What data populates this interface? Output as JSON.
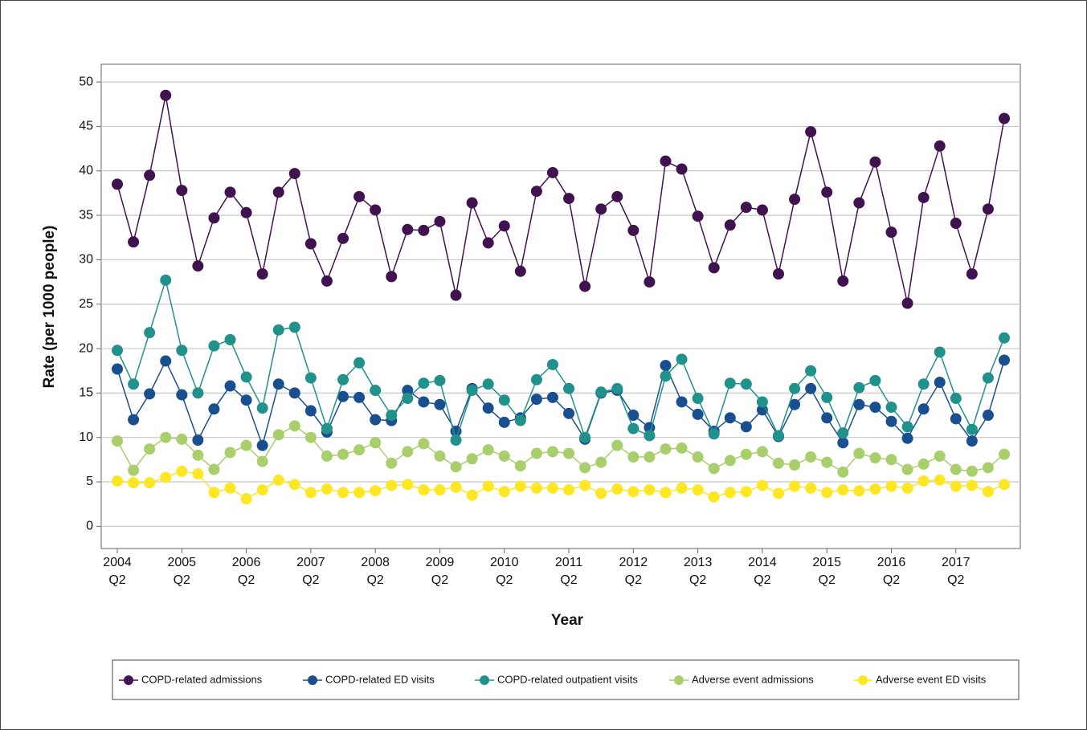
{
  "chart_data": {
    "type": "line",
    "y_label": "Rate (per 1000 people)",
    "x_label": "Year",
    "categories": [
      "2004 Q2",
      null,
      null,
      null,
      "2005 Q2",
      null,
      null,
      null,
      "2006 Q2",
      null,
      null,
      null,
      "2007 Q2",
      null,
      null,
      null,
      "2008 Q2",
      null,
      null,
      null,
      "2009 Q2",
      null,
      null,
      null,
      "2010 Q2",
      null,
      null,
      null,
      "2011 Q2",
      null,
      null,
      null,
      "2012 Q2",
      null,
      null,
      null,
      "2013 Q2",
      null,
      null,
      null,
      "2014 Q2",
      null,
      null,
      null,
      "2015 Q2",
      null,
      null,
      null,
      "2016 Q2",
      null,
      null,
      null,
      "2017 Q2",
      null,
      null,
      null
    ],
    "ylim": [
      -2.5,
      52
    ],
    "yticks": [
      0,
      5,
      10,
      15,
      20,
      25,
      30,
      35,
      40,
      45,
      50
    ],
    "grid": true,
    "legend": "bottom",
    "series": [
      {
        "name": "COPD-related admissions",
        "color": "#40124f",
        "values": [
          38.5,
          32,
          39.5,
          48.5,
          37.8,
          29.3,
          34.7,
          37.6,
          35.3,
          28.4,
          37.6,
          39.7,
          31.8,
          27.6,
          32.4,
          37.1,
          35.6,
          28.1,
          33.4,
          33.3,
          34.3,
          26,
          36.4,
          31.9,
          33.8,
          28.7,
          37.7,
          39.8,
          36.9,
          27,
          35.7,
          37.1,
          33.3,
          27.5,
          41.1,
          40.2,
          34.9,
          29.1,
          33.9,
          35.9,
          35.6,
          28.4,
          36.8,
          44.4,
          37.6,
          27.6,
          36.4,
          41,
          33.1,
          25.1,
          37,
          42.8,
          34.1,
          28.4,
          35.7,
          45.9
        ]
      },
      {
        "name": "COPD-related ED visits",
        "color": "#1a4f8f",
        "values": [
          17.7,
          12,
          14.9,
          18.6,
          14.8,
          9.7,
          13.2,
          15.8,
          14.2,
          9.1,
          16,
          15,
          13,
          10.6,
          14.6,
          14.5,
          12,
          11.9,
          15.3,
          14,
          13.7,
          10.7,
          15.5,
          13.3,
          11.7,
          12.2,
          14.3,
          14.5,
          12.7,
          9.8,
          15,
          15.3,
          12.5,
          11.1,
          18.1,
          14,
          12.6,
          10.7,
          12.2,
          11.2,
          13.1,
          10.1,
          13.7,
          15.5,
          12.2,
          9.4,
          13.7,
          13.4,
          11.8,
          9.9,
          13.2,
          16.2,
          12.1,
          9.6,
          12.5,
          18.7
        ]
      },
      {
        "name": "COPD-related outpatient visits",
        "color": "#21918c",
        "values": [
          19.8,
          16,
          21.8,
          27.7,
          19.8,
          15,
          20.3,
          21,
          16.8,
          13.3,
          22.1,
          22.4,
          16.7,
          11,
          16.5,
          18.4,
          15.3,
          12.5,
          14.4,
          16.1,
          16.4,
          9.7,
          15.3,
          16,
          14.2,
          11.9,
          16.5,
          18.2,
          15.5,
          10,
          15.1,
          15.5,
          11,
          10.2,
          16.9,
          18.8,
          14.4,
          10.4,
          16.1,
          16,
          14,
          10.2,
          15.5,
          17.5,
          14.5,
          10.5,
          15.6,
          16.4,
          13.4,
          11.2,
          16,
          19.6,
          14.4,
          10.9,
          16.7,
          21.2
        ]
      },
      {
        "name": "Adverse event admissions",
        "color": "#a8cf6c",
        "values": [
          9.6,
          6.3,
          8.7,
          10,
          9.8,
          8,
          6.4,
          8.3,
          9.1,
          7.3,
          10.3,
          11.3,
          10,
          7.9,
          8.1,
          8.6,
          9.4,
          7.1,
          8.4,
          9.3,
          7.9,
          6.7,
          7.6,
          8.6,
          7.9,
          6.8,
          8.2,
          8.4,
          8.2,
          6.6,
          7.2,
          9.1,
          7.8,
          7.8,
          8.7,
          8.8,
          7.8,
          6.5,
          7.4,
          8.1,
          8.4,
          7.1,
          6.9,
          7.8,
          7.2,
          6.1,
          8.2,
          7.7,
          7.5,
          6.4,
          7,
          7.9,
          6.4,
          6.2,
          6.6,
          8.1
        ]
      },
      {
        "name": "Adverse event ED visits",
        "color": "#fde725",
        "values": [
          5.1,
          4.9,
          4.9,
          5.5,
          6.2,
          5.9,
          3.8,
          4.3,
          3.1,
          4.1,
          5.2,
          4.7,
          3.8,
          4.2,
          3.8,
          3.8,
          4,
          4.6,
          4.7,
          4.1,
          4.1,
          4.4,
          3.5,
          4.5,
          3.9,
          4.5,
          4.3,
          4.3,
          4.1,
          4.6,
          3.7,
          4.2,
          3.9,
          4.1,
          3.8,
          4.3,
          4.1,
          3.3,
          3.8,
          3.9,
          4.6,
          3.7,
          4.5,
          4.3,
          3.8,
          4.1,
          4,
          4.2,
          4.5,
          4.3,
          5.1,
          5.2,
          4.5,
          4.6,
          3.9,
          4.7
        ]
      }
    ]
  }
}
